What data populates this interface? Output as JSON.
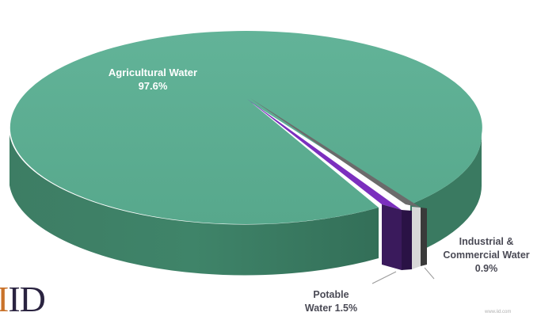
{
  "chart_data": {
    "type": "pie",
    "style": "3d-exploded",
    "slices": [
      {
        "name": "Agricultural Water",
        "pct": "97.6%",
        "value": 97.6,
        "color": "#5eae93",
        "label_lines": [
          "Agricultural Water",
          "97.6%"
        ]
      },
      {
        "name": "Potable Water",
        "pct": "1.5%",
        "value": 1.5,
        "color": "#7b2fbe",
        "label_lines": [
          "Potable",
          "Water 1.5%"
        ]
      },
      {
        "name": "Industrial & Commercial Water",
        "pct": "0.9%",
        "value": 0.9,
        "color": "#6b6b6b",
        "label_lines": [
          "Industrial &",
          "Commercial Water",
          "0.9%"
        ]
      }
    ]
  },
  "branding": {
    "logo_first": "I",
    "logo_rest": "ID",
    "watermark": "www.iid.com"
  }
}
